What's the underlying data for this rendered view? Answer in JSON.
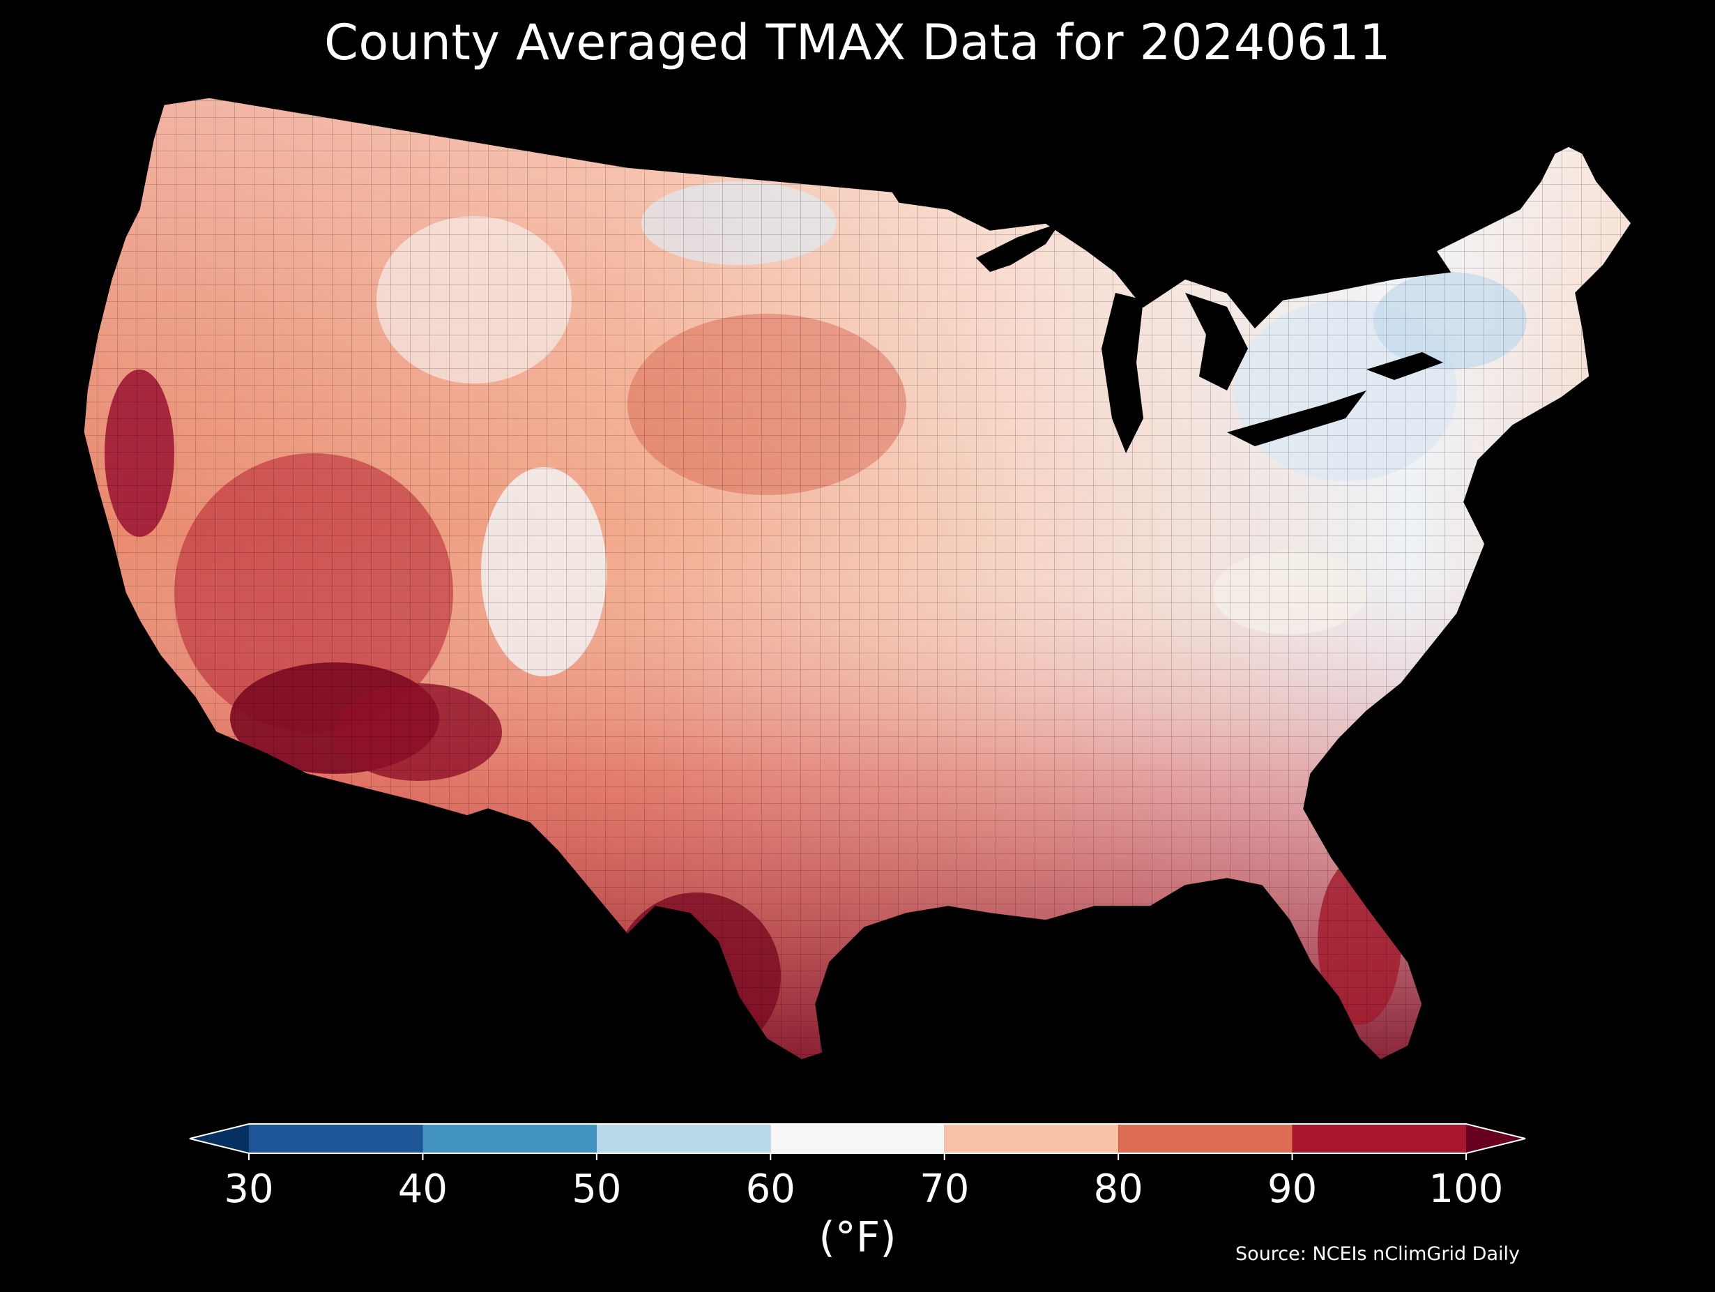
{
  "title": "County Averaged TMAX Data for 20240611",
  "colorbar": {
    "unit": "(°F)",
    "ticks": [
      "30",
      "40",
      "50",
      "60",
      "70",
      "80",
      "90",
      "100"
    ],
    "bins": [
      {
        "range": [
          30,
          40
        ],
        "color": "#1d5596"
      },
      {
        "range": [
          40,
          50
        ],
        "color": "#4393c3"
      },
      {
        "range": [
          50,
          60
        ],
        "color": "#b8d9ea"
      },
      {
        "range": [
          60,
          70
        ],
        "color": "#f7f7f7"
      },
      {
        "range": [
          70,
          80
        ],
        "color": "#f8c0a4"
      },
      {
        "range": [
          80,
          90
        ],
        "color": "#de6b54"
      },
      {
        "range": [
          90,
          100
        ],
        "color": "#a8172b"
      }
    ],
    "under_color": "#053061",
    "over_color": "#67001f"
  },
  "source": "Source: NCEIs nClimGrid Daily"
}
